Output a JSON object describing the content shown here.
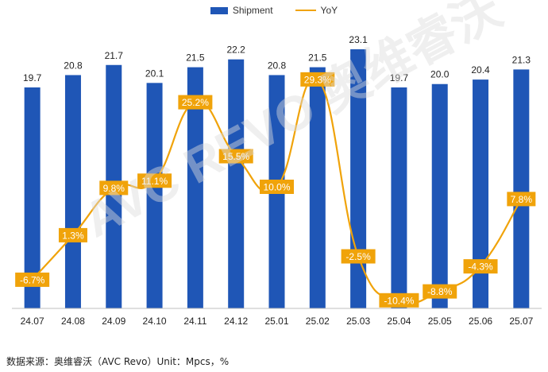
{
  "legend": {
    "bar_label": "Shipment",
    "line_label": "YoY"
  },
  "source_note": "数据来源：奥维睿沃（AVC Revo）Unit：Mpcs，%",
  "watermark": "AVC REVO 奥维睿沃",
  "colors": {
    "bar": "#1f56b6",
    "line": "#f0a30a",
    "label_box": "#f0a30a",
    "axis": "#bfbfbf"
  },
  "chart_data": {
    "type": "bar",
    "categories": [
      "24.07",
      "24.08",
      "24.09",
      "24.10",
      "24.11",
      "24.12",
      "25.01",
      "25.02",
      "25.03",
      "25.04",
      "25.05",
      "25.06",
      "25.07"
    ],
    "series": [
      {
        "name": "Shipment",
        "type": "bar",
        "values": [
          19.7,
          20.8,
          21.7,
          20.1,
          21.5,
          22.2,
          20.8,
          21.5,
          23.1,
          19.7,
          20.0,
          20.4,
          21.3
        ]
      },
      {
        "name": "YoY",
        "type": "line",
        "values": [
          -6.7,
          1.3,
          9.8,
          11.1,
          25.2,
          15.5,
          10.0,
          29.3,
          -2.5,
          -10.4,
          -8.8,
          -4.3,
          7.8
        ],
        "labels": [
          "-6.7%",
          "1.3%",
          "9.8%",
          "11.1%",
          "25.2%",
          "15.5%",
          "10.0%",
          "29.3%",
          "-2.5%",
          "-10.4%",
          "-8.8%",
          "-4.3%",
          "7.8%"
        ]
      }
    ],
    "bar_labels": [
      "19.7",
      "20.8",
      "21.7",
      "20.1",
      "21.5",
      "22.2",
      "20.8",
      "21.5",
      "23.1",
      "19.7",
      "20.0",
      "20.4",
      "21.3"
    ],
    "y_bar_range": [
      0,
      23.1
    ],
    "y_line_range": [
      -15,
      35
    ],
    "grid": false,
    "legend_position": "top-center"
  }
}
